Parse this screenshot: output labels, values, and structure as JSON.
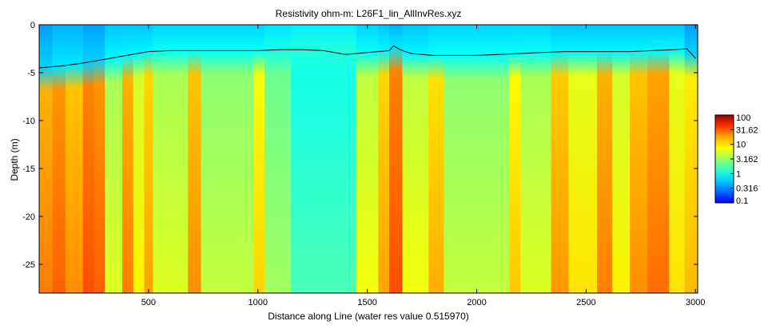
{
  "chart_data": {
    "type": "heatmap",
    "title": "Resistivity ohm-m: L26F1_lin_AllInvRes.xyz",
    "xlabel": "Distance along Line (water res value 0.515970)",
    "ylabel": "Depth (m)",
    "xlim": [
      0,
      3010
    ],
    "ylim": [
      -28,
      0
    ],
    "x_ticks": [
      500,
      1000,
      1500,
      2000,
      2500,
      3000
    ],
    "y_ticks": [
      0,
      -5,
      -10,
      -15,
      -20,
      -25
    ],
    "color_scale": "log",
    "colormap": "jet",
    "color_range": [
      0.1,
      100
    ],
    "colorbar_ticks": [
      "100",
      "31.62",
      "10",
      "3.162",
      "1",
      "0.316",
      "0.1"
    ],
    "colorbar_values": [
      100,
      31.62,
      10,
      3.162,
      1,
      0.316,
      0.1
    ],
    "water_bottom_line": {
      "color": "#000000",
      "x": [
        0,
        100,
        200,
        300,
        400,
        500,
        600,
        700,
        800,
        900,
        1000,
        1100,
        1200,
        1300,
        1400,
        1500,
        1600,
        1620,
        1650,
        1700,
        1800,
        1900,
        2000,
        2100,
        2200,
        2300,
        2400,
        2500,
        2600,
        2700,
        2800,
        2900,
        2960,
        3000
      ],
      "y": [
        -4.5,
        -4.3,
        -4.0,
        -3.6,
        -3.2,
        -2.8,
        -2.7,
        -2.7,
        -2.7,
        -2.7,
        -2.7,
        -2.6,
        -2.6,
        -2.7,
        -3.1,
        -2.9,
        -2.7,
        -2.2,
        -2.6,
        -3.0,
        -3.2,
        -3.2,
        -3.2,
        -3.1,
        -3.0,
        -2.9,
        -2.8,
        -2.8,
        -2.8,
        -2.8,
        -2.7,
        -2.6,
        -2.5,
        -3.5
      ]
    },
    "resistivity_bands": [
      {
        "x": [
          0,
          60
        ],
        "shallow": 0.7,
        "deep": 18
      },
      {
        "x": [
          60,
          120
        ],
        "shallow": 0.8,
        "deep": 22
      },
      {
        "x": [
          120,
          200
        ],
        "shallow": 0.8,
        "deep": 16
      },
      {
        "x": [
          200,
          250
        ],
        "shallow": 0.7,
        "deep": 25
      },
      {
        "x": [
          250,
          300
        ],
        "shallow": 0.7,
        "deep": 22
      },
      {
        "x": [
          300,
          380
        ],
        "shallow": 0.9,
        "deep": 6
      },
      {
        "x": [
          380,
          430
        ],
        "shallow": 0.9,
        "deep": 18
      },
      {
        "x": [
          430,
          480
        ],
        "shallow": 0.9,
        "deep": 8
      },
      {
        "x": [
          480,
          520
        ],
        "shallow": 0.9,
        "deep": 14
      },
      {
        "x": [
          520,
          680
        ],
        "shallow": 1.0,
        "deep": 6
      },
      {
        "x": [
          680,
          740
        ],
        "shallow": 1.0,
        "deep": 16
      },
      {
        "x": [
          740,
          980
        ],
        "shallow": 1.0,
        "deep": 5
      },
      {
        "x": [
          980,
          1030
        ],
        "shallow": 1.0,
        "deep": 10
      },
      {
        "x": [
          1030,
          1150
        ],
        "shallow": 1.1,
        "deep": 4
      },
      {
        "x": [
          1150,
          1450
        ],
        "shallow": 1.2,
        "deep": 2.2
      },
      {
        "x": [
          1450,
          1550
        ],
        "shallow": 1.0,
        "deep": 7
      },
      {
        "x": [
          1550,
          1600
        ],
        "shallow": 0.9,
        "deep": 14
      },
      {
        "x": [
          1600,
          1660
        ],
        "shallow": 0.8,
        "deep": 25
      },
      {
        "x": [
          1660,
          1780
        ],
        "shallow": 0.9,
        "deep": 7
      },
      {
        "x": [
          1780,
          1850
        ],
        "shallow": 1.0,
        "deep": 13
      },
      {
        "x": [
          1850,
          2150
        ],
        "shallow": 1.0,
        "deep": 5
      },
      {
        "x": [
          2150,
          2200
        ],
        "shallow": 1.0,
        "deep": 11
      },
      {
        "x": [
          2200,
          2340
        ],
        "shallow": 1.0,
        "deep": 6
      },
      {
        "x": [
          2340,
          2420
        ],
        "shallow": 0.9,
        "deep": 15
      },
      {
        "x": [
          2420,
          2550
        ],
        "shallow": 0.9,
        "deep": 9
      },
      {
        "x": [
          2550,
          2620
        ],
        "shallow": 0.9,
        "deep": 18
      },
      {
        "x": [
          2620,
          2700
        ],
        "shallow": 0.9,
        "deep": 8
      },
      {
        "x": [
          2700,
          2780
        ],
        "shallow": 0.9,
        "deep": 16
      },
      {
        "x": [
          2780,
          2880
        ],
        "shallow": 0.9,
        "deep": 20
      },
      {
        "x": [
          2880,
          2950
        ],
        "shallow": 0.9,
        "deep": 9
      },
      {
        "x": [
          2950,
          3010
        ],
        "shallow": 0.7,
        "deep": 12
      }
    ]
  }
}
